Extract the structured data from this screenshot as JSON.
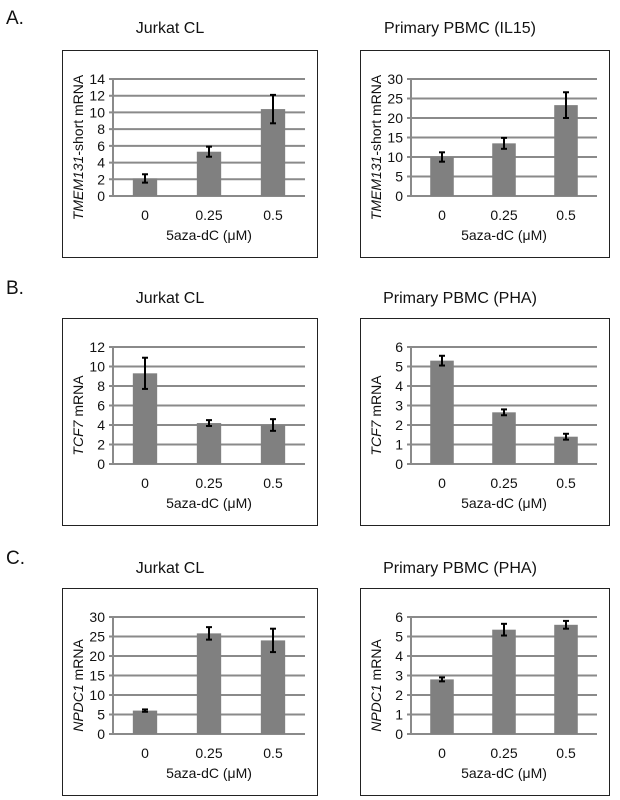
{
  "sections": [
    {
      "label": "A."
    },
    {
      "label": "B."
    },
    {
      "label": "C."
    }
  ],
  "chart_data": [
    {
      "type": "bar",
      "title": "Jurkat CL",
      "ylabel_italic": "TMEM131",
      "ylabel_rest": "-short mRNA",
      "xlabel": "5aza-dC (μM)",
      "categories": [
        "0",
        "0.25",
        "0.5"
      ],
      "values": [
        2.1,
        5.3,
        10.4
      ],
      "errors": [
        0.5,
        0.6,
        1.7
      ],
      "ylim": [
        0,
        14
      ],
      "yticks": [
        0,
        2,
        4,
        6,
        8,
        10,
        12,
        14
      ],
      "grid": true,
      "bar_color": "#808080"
    },
    {
      "type": "bar",
      "title": "Primary PBMC (IL15)",
      "ylabel_italic": "TMEM131",
      "ylabel_rest": "-short mRNA",
      "xlabel": "5aza-dC (μM)",
      "categories": [
        "0",
        "0.25",
        "0.5"
      ],
      "values": [
        10.0,
        13.5,
        23.3
      ],
      "errors": [
        1.2,
        1.4,
        3.3
      ],
      "ylim": [
        0,
        30
      ],
      "yticks": [
        0,
        5,
        10,
        15,
        20,
        25,
        30
      ],
      "grid": true,
      "bar_color": "#808080"
    },
    {
      "type": "bar",
      "title": "Jurkat CL",
      "ylabel_italic": "TCF7",
      "ylabel_rest": " mRNA",
      "xlabel": "5aza-dC (μM)",
      "categories": [
        "0",
        "0.25",
        "0.5"
      ],
      "values": [
        9.3,
        4.2,
        4.0
      ],
      "errors": [
        1.6,
        0.3,
        0.6
      ],
      "ylim": [
        0,
        12
      ],
      "yticks": [
        0,
        2,
        4,
        6,
        8,
        10,
        12
      ],
      "grid": true,
      "bar_color": "#808080"
    },
    {
      "type": "bar",
      "title": "Primary PBMC (PHA)",
      "ylabel_italic": "TCF7",
      "ylabel_rest": " mRNA",
      "xlabel": "5aza-dC (μM)",
      "categories": [
        "0",
        "0.25",
        "0.5"
      ],
      "values": [
        5.3,
        2.65,
        1.4
      ],
      "errors": [
        0.25,
        0.15,
        0.15
      ],
      "ylim": [
        0,
        6
      ],
      "yticks": [
        0,
        1,
        2,
        3,
        4,
        5,
        6
      ],
      "grid": true,
      "bar_color": "#808080"
    },
    {
      "type": "bar",
      "title": "Jurkat CL",
      "ylabel_italic": "NPDC1",
      "ylabel_rest": " mRNA",
      "xlabel": "5aza-dC (μM)",
      "categories": [
        "0",
        "0.25",
        "0.5"
      ],
      "values": [
        6.0,
        25.8,
        24.0
      ],
      "errors": [
        0.3,
        1.6,
        3.0
      ],
      "ylim": [
        0,
        30
      ],
      "yticks": [
        0,
        5,
        10,
        15,
        20,
        25,
        30
      ],
      "grid": true,
      "bar_color": "#808080"
    },
    {
      "type": "bar",
      "title": "Primary PBMC (PHA)",
      "ylabel_italic": "NPDC1",
      "ylabel_rest": " mRNA",
      "xlabel": "5aza-dC (μM)",
      "categories": [
        "0",
        "0.25",
        "0.5"
      ],
      "values": [
        2.8,
        5.35,
        5.6
      ],
      "errors": [
        0.1,
        0.3,
        0.2
      ],
      "ylim": [
        0,
        6
      ],
      "yticks": [
        0,
        1,
        2,
        3,
        4,
        5,
        6
      ],
      "grid": true,
      "bar_color": "#808080"
    }
  ]
}
